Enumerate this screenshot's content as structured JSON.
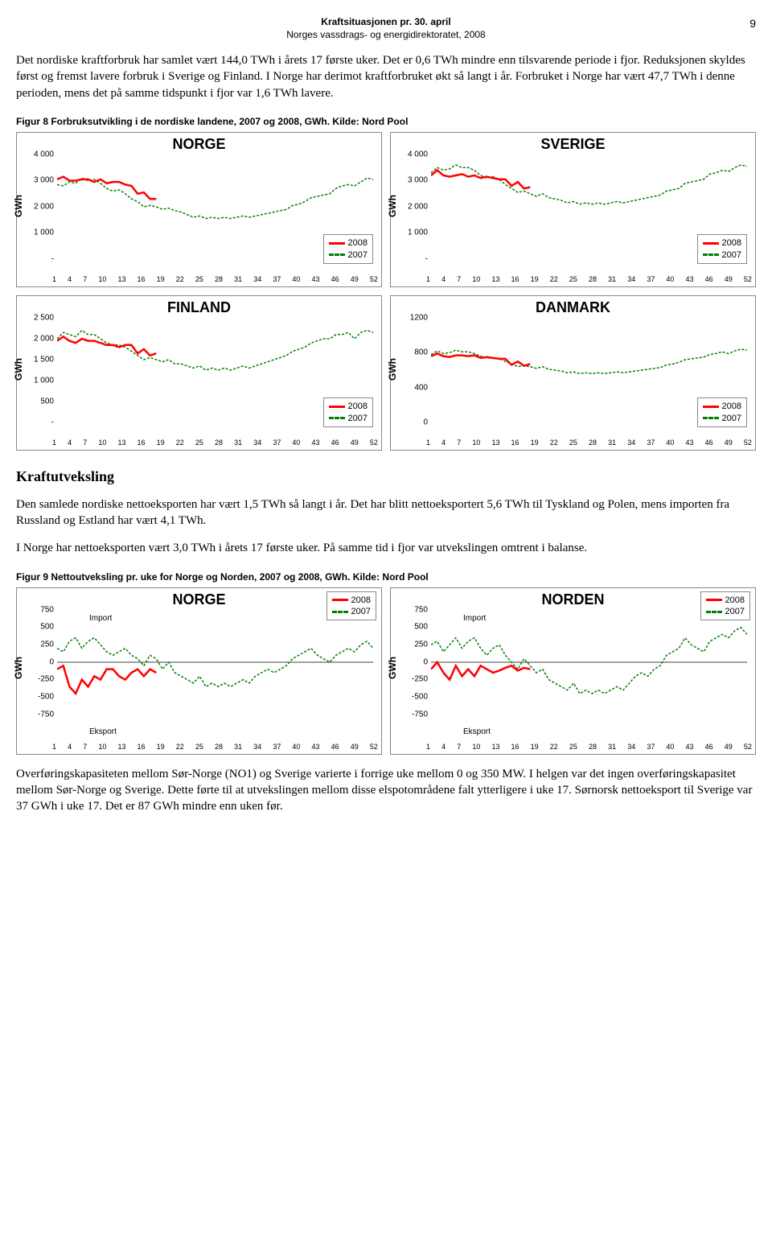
{
  "header": {
    "line1": "Kraftsituasjonen pr. 30. april",
    "line2": "Norges vassdrags- og energidirektoratet, 2008",
    "pagenum": "9"
  },
  "para1": "Det nordiske kraftforbruk har samlet vært 144,0 TWh i årets 17 første uker. Det er 0,6 TWh mindre enn tilsvarende periode i fjor. Reduksjonen skyldes først og fremst lavere forbruk i Sverige og Finland. I Norge har derimot kraftforbruket økt så langt i år. Forbruket i Norge har vært 47,7 TWh i denne perioden, mens det på samme tidspunkt i fjor var 1,6 TWh lavere.",
  "fig8cap": "Figur 8 Forbruksutvikling i de nordiske landene, 2007 og 2008, GWh. Kilde: Nord Pool",
  "charts": {
    "norge": {
      "title": "NORGE",
      "ylabel": "GWh",
      "ylim": [
        0,
        4000
      ],
      "yticks": [
        "4 000",
        "3 000",
        "2 000",
        "1 000",
        "-"
      ],
      "xticks": [
        "1",
        "4",
        "7",
        "10",
        "13",
        "16",
        "19",
        "22",
        "25",
        "28",
        "31",
        "34",
        "37",
        "40",
        "43",
        "46",
        "49",
        "52"
      ],
      "series2008_color": "#ff0000",
      "series2007_color": "#008000",
      "series2008": [
        3050,
        3150,
        3000,
        3000,
        3050,
        3050,
        2950,
        3050,
        2900,
        2950,
        2950,
        2850,
        2800,
        2500,
        2550,
        2300,
        2300
      ],
      "series2007": [
        2850,
        2800,
        2950,
        2900,
        3100,
        3000,
        3050,
        2900,
        2700,
        2600,
        2650,
        2500,
        2300,
        2200,
        2000,
        2050,
        2000,
        1900,
        1950,
        1850,
        1800,
        1700,
        1600,
        1650,
        1550,
        1600,
        1550,
        1600,
        1550,
        1600,
        1650,
        1600,
        1650,
        1700,
        1750,
        1800,
        1850,
        1900,
        2050,
        2100,
        2200,
        2350,
        2400,
        2450,
        2500,
        2700,
        2800,
        2850,
        2800,
        2950,
        3100,
        3050
      ],
      "legend": {
        "s1": "2008",
        "s2": "2007"
      }
    },
    "sverige": {
      "title": "SVERIGE",
      "ylabel": "GWh",
      "ylim": [
        0,
        4000
      ],
      "yticks": [
        "4 000",
        "3 000",
        "2 000",
        "1 000",
        "-"
      ],
      "xticks": [
        "1",
        "4",
        "7",
        "10",
        "13",
        "16",
        "19",
        "22",
        "25",
        "28",
        "31",
        "34",
        "37",
        "40",
        "43",
        "46",
        "49",
        "52"
      ],
      "series2008_color": "#ff0000",
      "series2007_color": "#008000",
      "series2008": [
        3200,
        3400,
        3200,
        3150,
        3200,
        3250,
        3150,
        3200,
        3100,
        3150,
        3100,
        3050,
        3050,
        2800,
        2950,
        2700,
        2750
      ],
      "series2007": [
        3300,
        3500,
        3400,
        3450,
        3600,
        3500,
        3500,
        3400,
        3200,
        3100,
        3150,
        3050,
        2850,
        2700,
        2550,
        2600,
        2500,
        2400,
        2500,
        2350,
        2300,
        2250,
        2150,
        2200,
        2100,
        2150,
        2100,
        2150,
        2100,
        2150,
        2200,
        2150,
        2200,
        2250,
        2300,
        2350,
        2400,
        2450,
        2600,
        2650,
        2700,
        2900,
        2950,
        3000,
        3050,
        3250,
        3300,
        3400,
        3350,
        3500,
        3600,
        3550
      ],
      "legend": {
        "s1": "2008",
        "s2": "2007"
      }
    },
    "finland": {
      "title": "FINLAND",
      "ylabel": "GWh",
      "ylim": [
        0,
        2500
      ],
      "yticks": [
        "2 500",
        "2 000",
        "1 500",
        "1 000",
        "500",
        "-"
      ],
      "xticks": [
        "1",
        "4",
        "7",
        "10",
        "13",
        "16",
        "19",
        "22",
        "25",
        "28",
        "31",
        "34",
        "37",
        "40",
        "43",
        "46",
        "49",
        "52"
      ],
      "series2008_color": "#ff0000",
      "series2007_color": "#008000",
      "series2008": [
        1950,
        2050,
        1950,
        1900,
        2000,
        1950,
        1950,
        1900,
        1850,
        1850,
        1800,
        1850,
        1850,
        1650,
        1750,
        1600,
        1650
      ],
      "series2007": [
        2000,
        2150,
        2100,
        2050,
        2200,
        2100,
        2100,
        2000,
        1900,
        1850,
        1850,
        1800,
        1700,
        1600,
        1500,
        1550,
        1500,
        1450,
        1500,
        1400,
        1400,
        1350,
        1300,
        1350,
        1250,
        1300,
        1250,
        1300,
        1250,
        1300,
        1350,
        1300,
        1350,
        1400,
        1450,
        1500,
        1550,
        1600,
        1700,
        1750,
        1800,
        1900,
        1950,
        2000,
        2000,
        2100,
        2100,
        2150,
        2000,
        2150,
        2200,
        2150
      ],
      "legend": {
        "s1": "2008",
        "s2": "2007"
      }
    },
    "danmark": {
      "title": "DANMARK",
      "ylabel": "GWh",
      "ylim": [
        0,
        1200
      ],
      "yticks": [
        "1200",
        "800",
        "400",
        "0"
      ],
      "xticks": [
        "1",
        "4",
        "7",
        "10",
        "13",
        "16",
        "19",
        "22",
        "25",
        "28",
        "31",
        "34",
        "37",
        "40",
        "43",
        "46",
        "49",
        "52"
      ],
      "series2008_color": "#ff0000",
      "series2007_color": "#008000",
      "series2008": [
        760,
        790,
        760,
        750,
        770,
        770,
        760,
        770,
        740,
        750,
        740,
        730,
        730,
        660,
        700,
        650,
        670
      ],
      "series2007": [
        780,
        820,
        790,
        800,
        830,
        810,
        810,
        790,
        760,
        740,
        740,
        730,
        700,
        670,
        640,
        650,
        640,
        620,
        640,
        610,
        600,
        590,
        570,
        580,
        560,
        570,
        560,
        570,
        560,
        570,
        580,
        570,
        580,
        590,
        600,
        610,
        620,
        630,
        660,
        670,
        690,
        720,
        730,
        740,
        750,
        780,
        790,
        810,
        790,
        820,
        840,
        830
      ],
      "legend": {
        "s1": "2008",
        "s2": "2007"
      }
    }
  },
  "h2_1": "Kraftutveksling",
  "para2": "Den samlede nordiske nettoeksporten har vært 1,5 TWh så langt i år. Det har blitt nettoeksportert 5,6 TWh til Tyskland og Polen, mens importen fra Russland og Estland har vært 4,1 TWh.",
  "para3": "I Norge har nettoeksporten vært 3,0 TWh i årets 17 første uker. På samme tid i fjor var utvekslingen omtrent i balanse.",
  "fig9cap": "Figur 9 Nettoutveksling pr. uke for Norge og Norden, 2007 og 2008, GWh. Kilde: Nord Pool",
  "charts2": {
    "norge2": {
      "title": "NORGE",
      "ylabel": "GWh",
      "ylim": [
        -750,
        750
      ],
      "yticks": [
        "750",
        "500",
        "250",
        "0",
        "-250",
        "-500",
        "-750"
      ],
      "xticks": [
        "1",
        "4",
        "7",
        "10",
        "13",
        "16",
        "19",
        "22",
        "25",
        "28",
        "31",
        "34",
        "37",
        "40",
        "43",
        "46",
        "49",
        "52"
      ],
      "series2008_color": "#ff0000",
      "series2007_color": "#008000",
      "series2008": [
        -100,
        -50,
        -350,
        -450,
        -250,
        -350,
        -200,
        -250,
        -100,
        -100,
        -200,
        -250,
        -150,
        -100,
        -200,
        -100,
        -150
      ],
      "series2007": [
        200,
        150,
        300,
        350,
        200,
        300,
        350,
        250,
        150,
        100,
        150,
        200,
        100,
        50,
        -50,
        100,
        50,
        -100,
        0,
        -150,
        -200,
        -250,
        -300,
        -200,
        -350,
        -300,
        -350,
        -300,
        -350,
        -300,
        -250,
        -300,
        -200,
        -150,
        -100,
        -150,
        -100,
        -50,
        50,
        100,
        150,
        200,
        100,
        50,
        0,
        100,
        150,
        200,
        150,
        250,
        300,
        200
      ],
      "legend": {
        "s1": "2008",
        "s2": "2007"
      },
      "annot_import": "Import",
      "annot_export": "Eksport"
    },
    "norden": {
      "title": "NORDEN",
      "ylabel": "GWh",
      "ylim": [
        -750,
        750
      ],
      "yticks": [
        "750",
        "500",
        "250",
        "0",
        "-250",
        "-500",
        "-750"
      ],
      "xticks": [
        "1",
        "4",
        "7",
        "10",
        "13",
        "16",
        "19",
        "22",
        "25",
        "28",
        "31",
        "34",
        "37",
        "40",
        "43",
        "46",
        "49",
        "52"
      ],
      "series2008_color": "#ff0000",
      "series2007_color": "#008000",
      "series2008": [
        -100,
        0,
        -150,
        -250,
        -50,
        -200,
        -100,
        -200,
        -50,
        -100,
        -150,
        -120,
        -80,
        -50,
        -120,
        -80,
        -100
      ],
      "series2007": [
        250,
        300,
        150,
        250,
        350,
        200,
        300,
        350,
        200,
        100,
        200,
        250,
        100,
        0,
        -100,
        50,
        -50,
        -150,
        -100,
        -250,
        -300,
        -350,
        -400,
        -300,
        -450,
        -400,
        -450,
        -400,
        -450,
        -400,
        -350,
        -400,
        -300,
        -200,
        -150,
        -200,
        -100,
        -50,
        100,
        150,
        200,
        350,
        250,
        200,
        150,
        300,
        350,
        400,
        350,
        450,
        500,
        400
      ],
      "legend": {
        "s1": "2008",
        "s2": "2007"
      },
      "annot_import": "Import",
      "annot_export": "Eksport"
    }
  },
  "para4": "Overføringskapasiteten mellom Sør-Norge (NO1) og Sverige varierte i forrige uke mellom 0 og 350 MW. I helgen var det ingen overføringskapasitet mellom Sør-Norge og Sverige. Dette førte til at utvekslingen mellom disse elspotområdene falt ytterligere i uke 17. Sørnorsk nettoeksport til Sverige var 37 GWh i uke 17. Det er 87 GWh mindre enn uken før.",
  "colors": {
    "red": "#ff0000",
    "green": "#008000",
    "border": "#888888"
  }
}
